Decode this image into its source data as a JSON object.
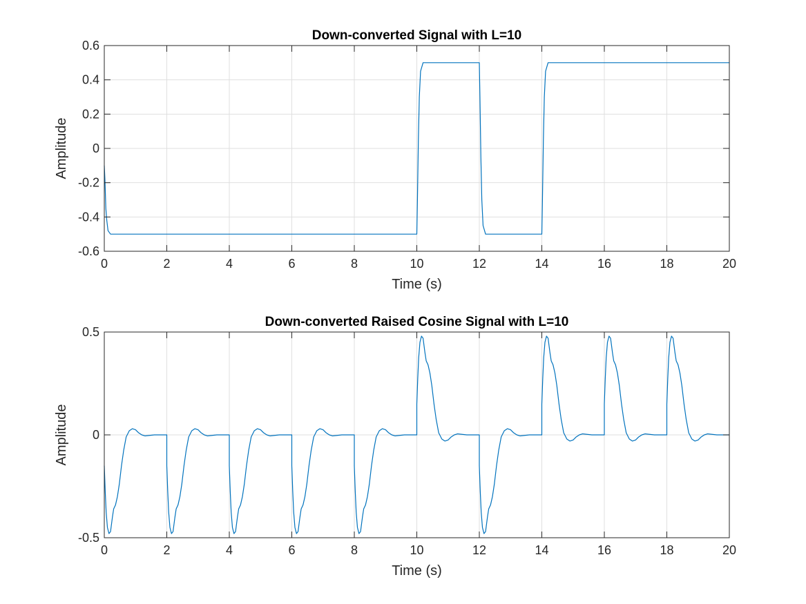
{
  "chart_data": [
    {
      "type": "line",
      "title": "Down-converted Signal with L=10",
      "xlabel": "Time (s)",
      "ylabel": "Amplitude",
      "xlim": [
        0,
        20
      ],
      "ylim": [
        -0.6,
        0.6
      ],
      "xticks": [
        0,
        2,
        4,
        6,
        8,
        10,
        12,
        14,
        16,
        18,
        20
      ],
      "xtick_labels": [
        "0",
        "2",
        "4",
        "6",
        "8",
        "10",
        "12",
        "14",
        "16",
        "18",
        "20"
      ],
      "yticks": [
        -0.6,
        -0.4,
        -0.2,
        0,
        0.2,
        0.4,
        0.6
      ],
      "ytick_labels": [
        "-0.6",
        "-0.4",
        "-0.2",
        "0",
        "0.2",
        "0.4",
        "0.6"
      ],
      "grid": true,
      "line_color": "#0072BD",
      "series": [
        {
          "x": [
            0,
            0.02,
            0.05,
            0.08,
            0.12,
            0.2,
            10.0,
            10.02,
            10.05,
            10.08,
            10.12,
            10.2,
            12.0,
            12.02,
            12.05,
            12.08,
            12.12,
            12.2,
            14.0,
            14.02,
            14.05,
            14.08,
            14.12,
            14.2,
            20.0
          ],
          "y": [
            -0.1,
            -0.18,
            -0.35,
            -0.42,
            -0.48,
            -0.5,
            -0.5,
            -0.3,
            0.05,
            0.3,
            0.45,
            0.5,
            0.5,
            0.3,
            -0.05,
            -0.3,
            -0.45,
            -0.5,
            -0.5,
            -0.3,
            0.05,
            0.3,
            0.45,
            0.5,
            0.5
          ]
        }
      ]
    },
    {
      "type": "line",
      "title": "Down-converted Raised Cosine Signal with L=10",
      "xlabel": "Time (s)",
      "ylabel": "Amplitude",
      "xlim": [
        0,
        20
      ],
      "ylim": [
        -0.5,
        0.5
      ],
      "xticks": [
        0,
        2,
        4,
        6,
        8,
        10,
        12,
        14,
        16,
        18,
        20
      ],
      "xtick_labels": [
        "0",
        "2",
        "4",
        "6",
        "8",
        "10",
        "12",
        "14",
        "16",
        "18",
        "20"
      ],
      "yticks": [
        -0.5,
        0,
        0.5
      ],
      "ytick_labels": [
        "-0.5",
        "0",
        "0.5"
      ],
      "grid": true,
      "line_color": "#0072BD",
      "symbol_period": 2,
      "symbols": [
        -1,
        -1,
        -1,
        -1,
        -1,
        1,
        -1,
        1,
        1,
        1
      ],
      "pulse_shape": {
        "t": [
          0,
          0.03,
          0.06,
          0.1,
          0.15,
          0.2,
          0.26,
          0.3,
          0.36,
          0.42,
          0.48,
          0.55,
          0.62,
          0.7,
          0.8,
          0.9,
          1.0,
          1.1,
          1.2,
          1.3,
          1.45,
          1.6,
          1.8,
          2.0
        ],
        "a": [
          0.3,
          0.55,
          0.75,
          0.9,
          0.96,
          0.94,
          0.8,
          0.72,
          0.68,
          0.6,
          0.48,
          0.3,
          0.15,
          0.02,
          -0.04,
          -0.06,
          -0.05,
          -0.02,
          0.0,
          0.01,
          0.005,
          0.0,
          0.0,
          0.0
        ]
      }
    }
  ]
}
